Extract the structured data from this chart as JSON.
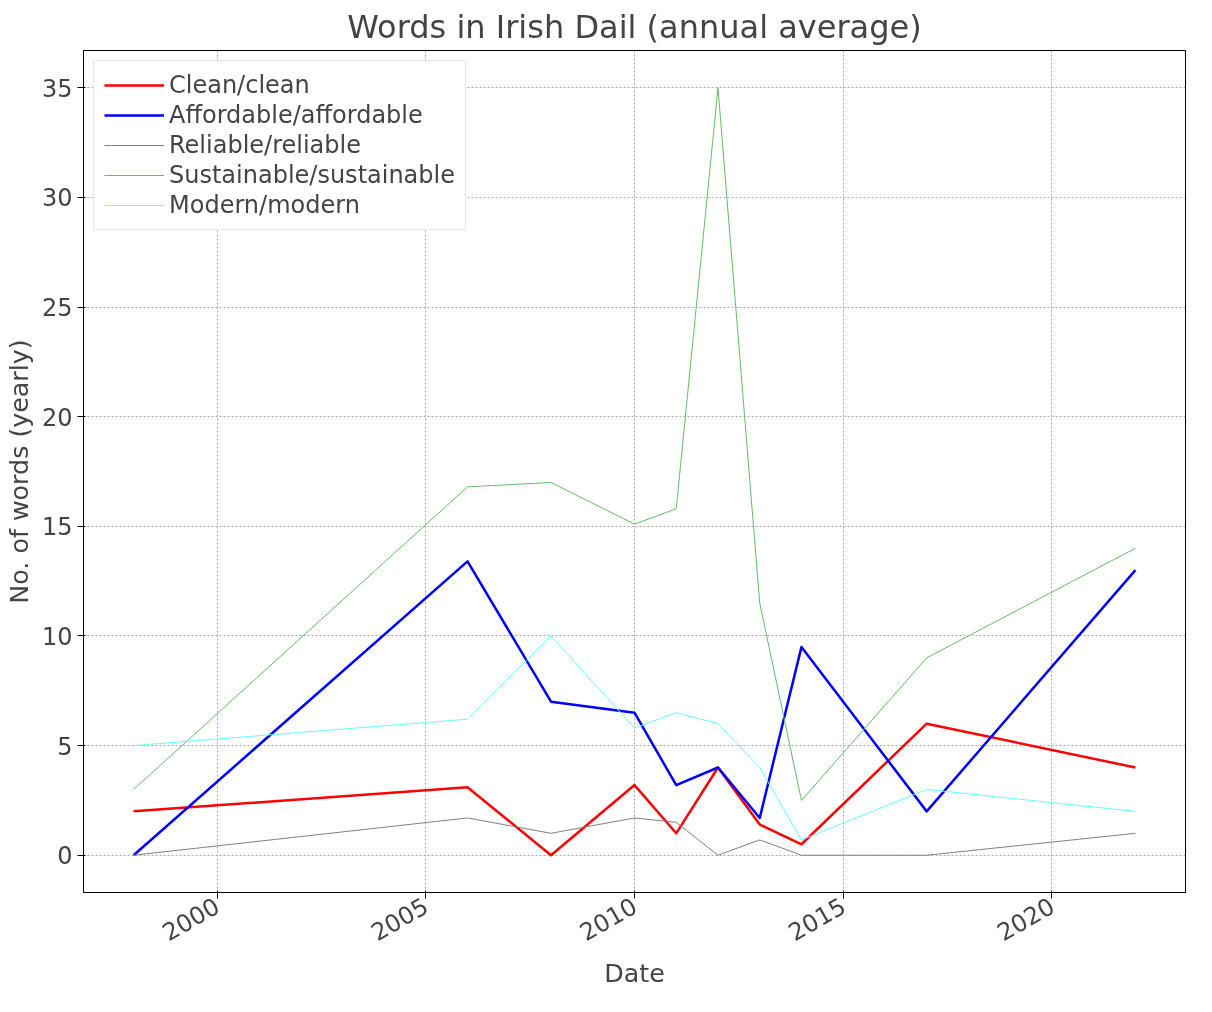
{
  "chart_data": {
    "type": "line",
    "title": "Words in Irish Dail (annual average)",
    "xlabel": "Date",
    "ylabel": "No. of words (yearly)",
    "x": [
      1998,
      2006,
      2008,
      2010,
      2011,
      2012,
      2013,
      2014,
      2017,
      2022
    ],
    "series": [
      {
        "name": "Clean/clean",
        "color": "#ff0000",
        "values": [
          2.0,
          3.1,
          0,
          3.2,
          1.0,
          4.0,
          1.4,
          0.5,
          6.0,
          4.0
        ]
      },
      {
        "name": "Affordable/affordable",
        "color": "#0000ff",
        "values": [
          0,
          13.4,
          7.0,
          6.5,
          3.2,
          4.0,
          1.7,
          9.5,
          2.0,
          13.0
        ]
      },
      {
        "name": "Reliable/reliable",
        "color": "#808080",
        "values": [
          0,
          1.7,
          1.0,
          1.7,
          1.5,
          0,
          0.7,
          0,
          0,
          1.0
        ]
      },
      {
        "name": "Sustainable/sustainable",
        "color": "#66bb66",
        "values": [
          3.0,
          16.8,
          17.0,
          15.1,
          15.8,
          35.0,
          11.5,
          2.5,
          9.0,
          14.0
        ]
      },
      {
        "name": "Modern/modern",
        "color": "#66ffff",
        "values": [
          5.0,
          6.2,
          10.0,
          5.8,
          6.5,
          6.0,
          4.0,
          0.7,
          3.0,
          2.0
        ]
      }
    ],
    "xlim": [
      1996.8,
      2023.2
    ],
    "ylim": [
      -1.7,
      36.7
    ],
    "xticks": [
      2000,
      2005,
      2010,
      2015,
      2020
    ],
    "yticks": [
      0,
      5,
      10,
      15,
      20,
      25,
      30,
      35
    ],
    "grid": true,
    "legend": "top left",
    "line_style": "solid",
    "marker": "none"
  }
}
